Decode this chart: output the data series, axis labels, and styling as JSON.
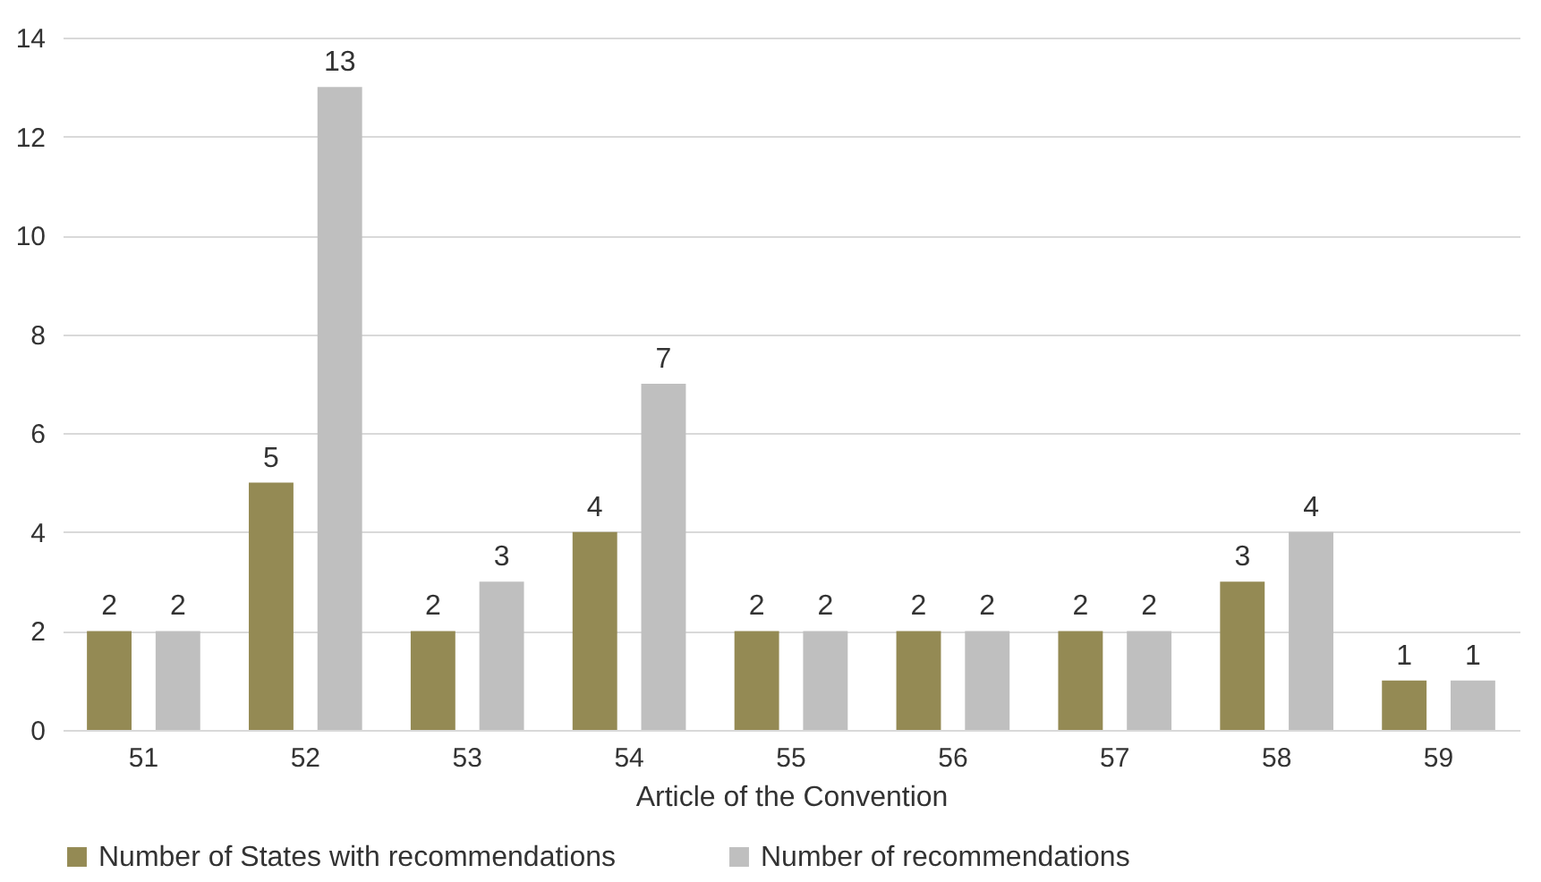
{
  "chart_data": {
    "type": "bar",
    "xlabel": "Article of the Convention",
    "categories": [
      "51",
      "52",
      "53",
      "54",
      "55",
      "56",
      "57",
      "58",
      "59"
    ],
    "series": [
      {
        "name": "Number of States with recommendations",
        "color": "#948a54",
        "values": [
          2,
          5,
          2,
          4,
          2,
          2,
          2,
          3,
          1
        ]
      },
      {
        "name": "Number of recommendations",
        "color": "#bfbfbf",
        "values": [
          2,
          13,
          3,
          7,
          2,
          2,
          2,
          4,
          1
        ]
      }
    ],
    "ylim": [
      0,
      14
    ],
    "yticks": [
      0,
      2,
      4,
      6,
      8,
      10,
      12,
      14
    ],
    "grid": "y",
    "legend": "bottom",
    "data_labels": true
  }
}
